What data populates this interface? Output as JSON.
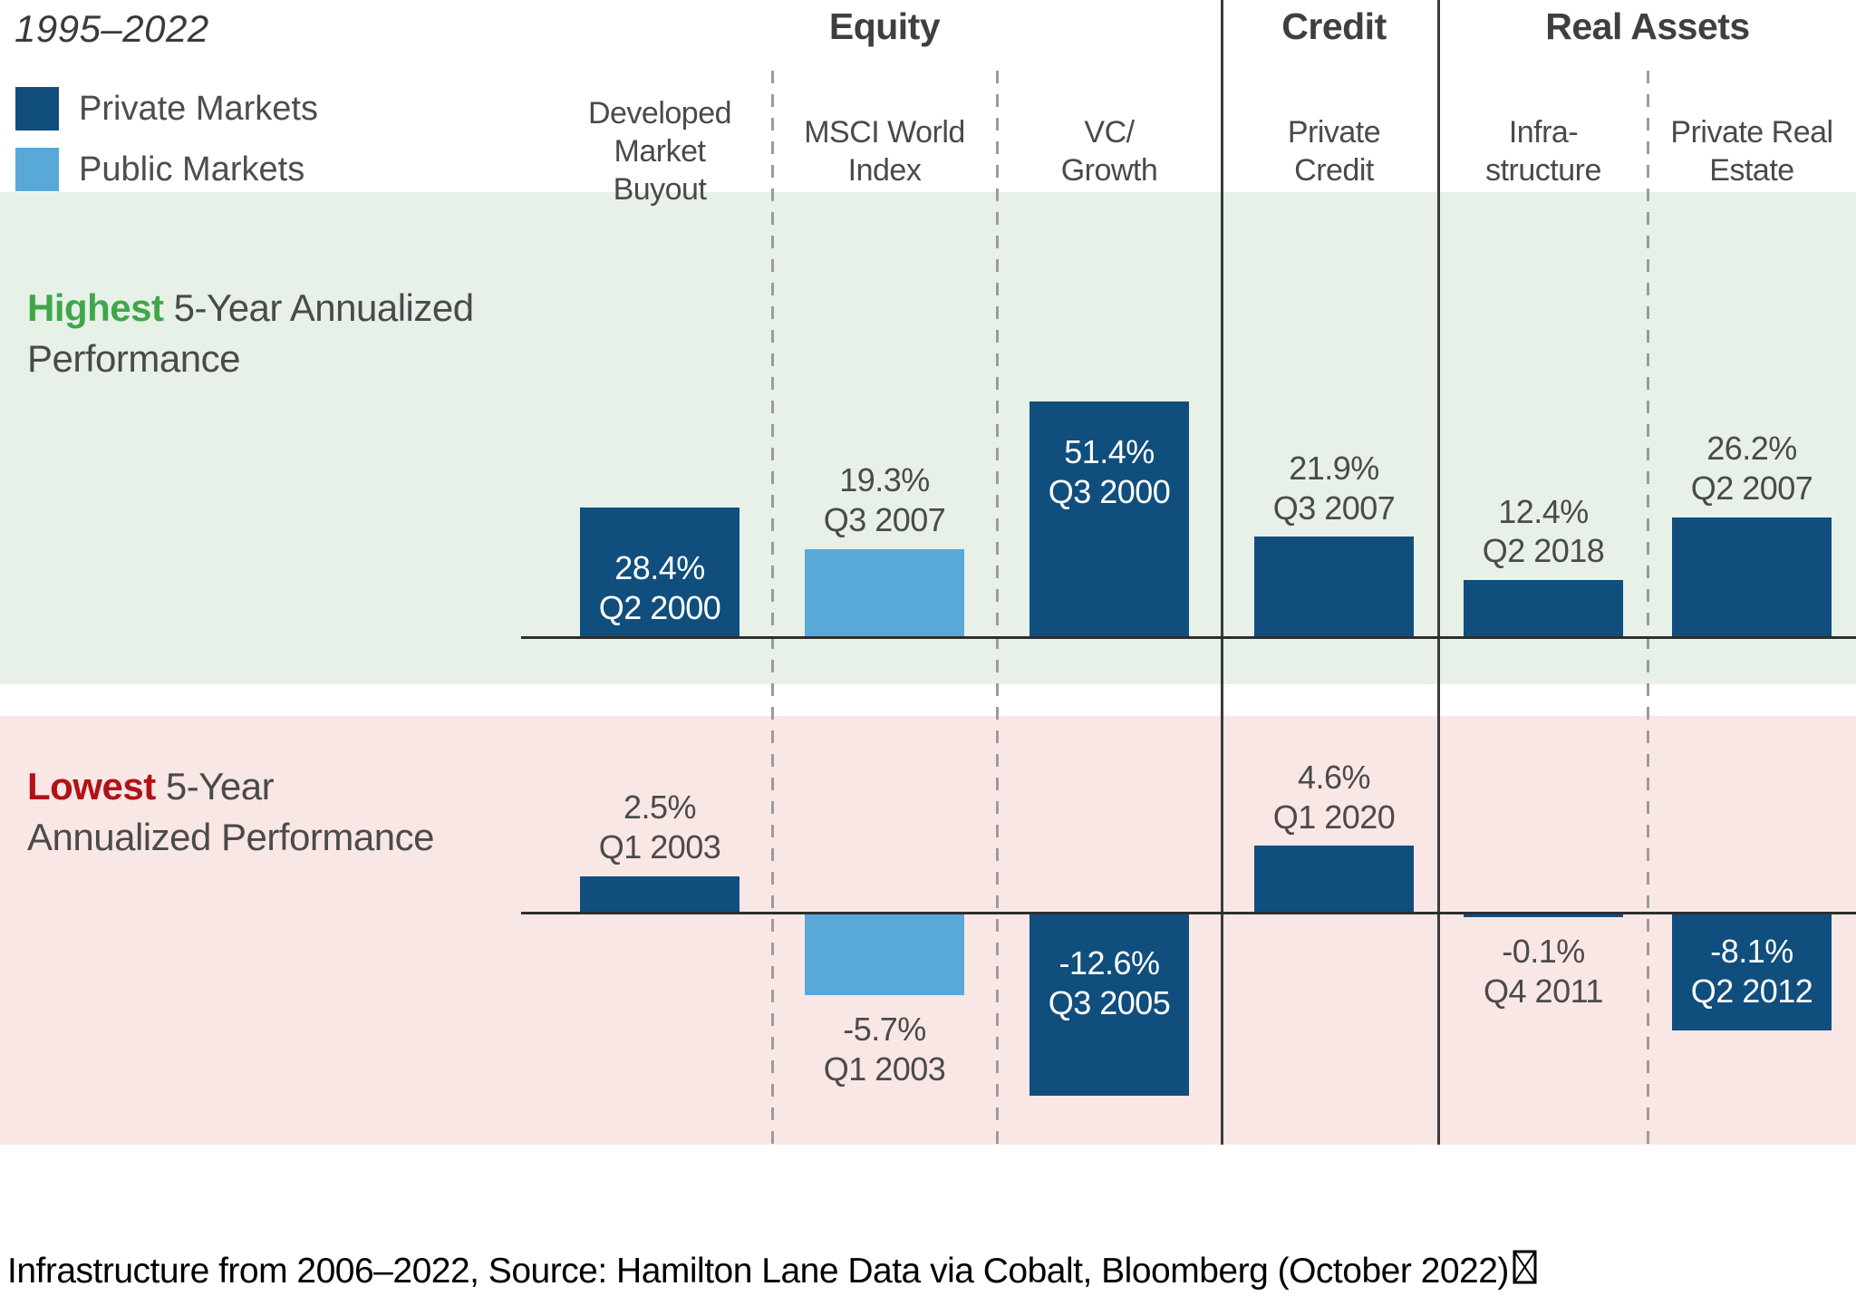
{
  "title": "1995–2022",
  "legend": {
    "items": [
      {
        "label": "Private Markets",
        "color": "#104e7e"
      },
      {
        "label": "Public Markets",
        "color": "#58a9d8"
      }
    ]
  },
  "sections": [
    {
      "label": "Equity",
      "columns": [
        0,
        2
      ]
    },
    {
      "label": "Credit",
      "columns": [
        3,
        3
      ]
    },
    {
      "label": "Real Assets",
      "columns": [
        4,
        5
      ]
    }
  ],
  "columns": [
    {
      "name": "Developed Market Buyout",
      "header_lines": [
        "Developed",
        "Market",
        "Buyout"
      ],
      "market": "private"
    },
    {
      "name": "MSCI World Index",
      "header_lines": [
        "MSCI World",
        "Index"
      ],
      "market": "public"
    },
    {
      "name": "VC/Growth",
      "header_lines": [
        "VC/",
        "Growth"
      ],
      "market": "private"
    },
    {
      "name": "Private Credit",
      "header_lines": [
        "Private",
        "Credit"
      ],
      "market": "private"
    },
    {
      "name": "Infra-structure",
      "header_lines": [
        "Infra-",
        "structure"
      ],
      "market": "private"
    },
    {
      "name": "Private Real Estate",
      "header_lines": [
        "Private Real",
        "Estate"
      ],
      "market": "private"
    }
  ],
  "band_titles": {
    "highest": {
      "lines": [
        [
          {
            "t": "Highest",
            "hl": "#3fa74a"
          },
          {
            "t": " 5-Year Annualized"
          }
        ],
        [
          {
            "t": "Performance"
          }
        ]
      ]
    },
    "lowest": {
      "lines": [
        [
          {
            "t": "Lowest",
            "hl": "#b01216"
          },
          {
            "t": " 5-Year"
          }
        ],
        [
          {
            "t": "Annualized Performance"
          }
        ]
      ]
    }
  },
  "colors": {
    "private_bar": "#104e7e",
    "public_bar": "#58a9d8",
    "highest_band_bg": "#e7f1e8",
    "lowest_band_bg": "#f9e7e6",
    "axis": "#2e2e2e",
    "solid_divider": "#3b3b3b",
    "dashed_divider": "#9b9b9b",
    "label_gray": "#4a4a4a"
  },
  "chart_data": {
    "type": "bar",
    "title": "Highest and Lowest 5-Year Annualized Performance, 1995–2022",
    "categories": [
      "Developed Market Buyout",
      "MSCI World Index",
      "VC/Growth",
      "Private Credit",
      "Infra-structure",
      "Private Real Estate"
    ],
    "category_groups": [
      "Equity",
      "Equity",
      "Equity",
      "Credit",
      "Real Assets",
      "Real Assets"
    ],
    "series": [
      {
        "name": "Highest 5-Year Annualized Performance",
        "band": "highest",
        "values": [
          28.4,
          19.3,
          51.4,
          21.9,
          12.4,
          26.2
        ],
        "value_labels": [
          "28.4%",
          "19.3%",
          "51.4%",
          "21.9%",
          "12.4%",
          "26.2%"
        ],
        "periods": [
          "Q2 2000",
          "Q3 2007",
          "Q3 2000",
          "Q3 2007",
          "Q2 2018",
          "Q2 2007"
        ],
        "label_placement": [
          "inside-bottom",
          "above",
          "inside-top",
          "above",
          "above",
          "above"
        ]
      },
      {
        "name": "Lowest 5-Year Annualized Performance",
        "band": "lowest",
        "values": [
          2.5,
          -5.7,
          -12.6,
          4.6,
          -0.1,
          -8.1
        ],
        "value_labels": [
          "2.5%",
          "-5.7%",
          "-12.6%",
          "4.6%",
          "-0.1%",
          "-8.1%"
        ],
        "periods": [
          "Q1 2003",
          "Q1 2003",
          "Q3 2005",
          "Q1 2020",
          "Q4 2011",
          "Q2 2012"
        ],
        "label_placement": [
          "above",
          "below",
          "inside-top",
          "above",
          "below",
          "inside-center"
        ]
      }
    ],
    "series_color_by_category": [
      "private",
      "public",
      "private",
      "private",
      "private",
      "private"
    ],
    "axis": {
      "unit": "%",
      "zero_baseline": true,
      "gridlines": false,
      "top_band_range": [
        0,
        55
      ],
      "bottom_band_range": [
        -14,
        6
      ]
    },
    "legend_position": "top-left"
  },
  "footer": {
    "text": "Infrastructure from 2006–2022, Source: Hamilton Lane Data via Cobalt, Bloomberg (October 2022)",
    "trailing_missing_glyph": true
  }
}
